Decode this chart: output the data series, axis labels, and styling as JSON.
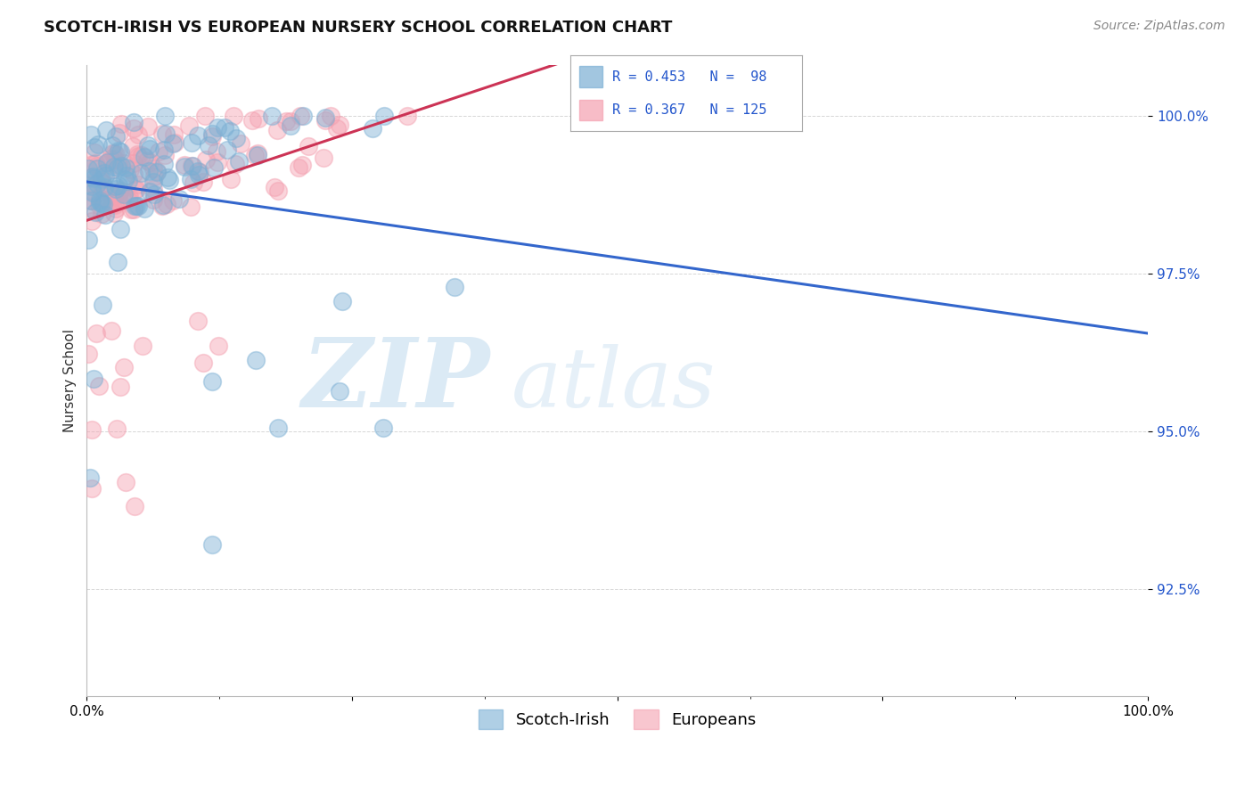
{
  "title": "SCOTCH-IRISH VS EUROPEAN NURSERY SCHOOL CORRELATION CHART",
  "source": "Source: ZipAtlas.com",
  "ylabel": "Nursery School",
  "ytick_labels": [
    "100.0%",
    "97.5%",
    "95.0%",
    "92.5%"
  ],
  "ytick_values": [
    1.0,
    0.975,
    0.95,
    0.925
  ],
  "xlim": [
    0.0,
    1.0
  ],
  "ylim": [
    0.908,
    1.008
  ],
  "scotch_irish_R": 0.453,
  "scotch_irish_N": 98,
  "europeans_R": 0.367,
  "europeans_N": 125,
  "scotch_irish_color": "#7BAFD4",
  "europeans_color": "#F4A0B0",
  "trendline_scotch_color": "#3366CC",
  "trendline_european_color": "#CC3355",
  "background_color": "#FFFFFF",
  "grid_color": "#CCCCCC",
  "legend_scotch_label": "Scotch-Irish",
  "legend_european_label": "Europeans",
  "title_fontsize": 13,
  "source_fontsize": 10,
  "tick_fontsize": 11
}
